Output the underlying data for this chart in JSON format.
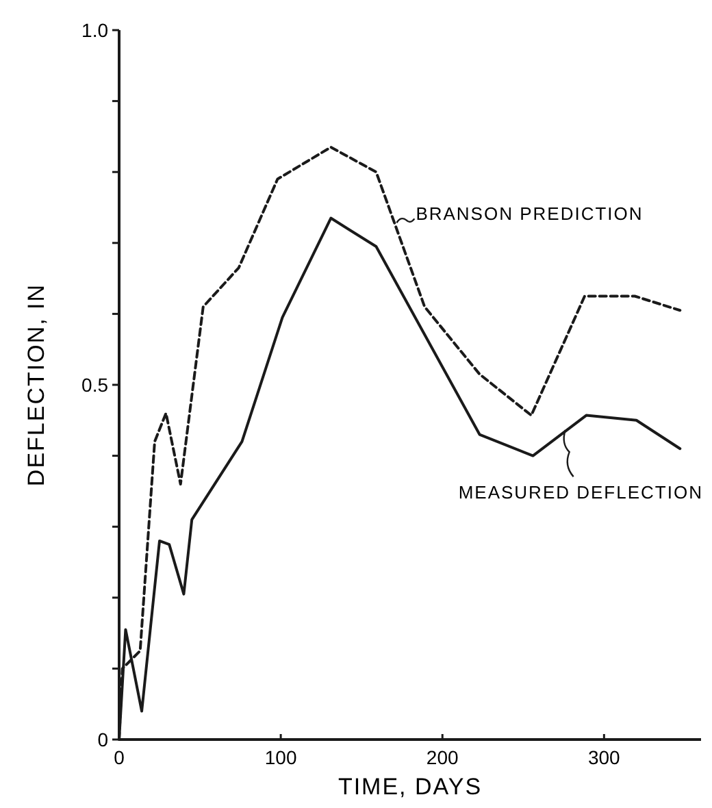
{
  "chart_data": {
    "type": "line",
    "xlabel": "TIME, DAYS",
    "ylabel": "DEFLECTION, IN",
    "xlim": [
      0,
      360
    ],
    "xticks": [
      0,
      100,
      200,
      300
    ],
    "ylim": [
      0,
      1.0
    ],
    "yticks": [
      {
        "value": 0,
        "label": "0"
      },
      {
        "value": 0.1,
        "label": null
      },
      {
        "value": 0.2,
        "label": null
      },
      {
        "value": 0.3,
        "label": null
      },
      {
        "value": 0.4,
        "label": null
      },
      {
        "value": 0.5,
        "label": "0.5"
      },
      {
        "value": 0.6,
        "label": null
      },
      {
        "value": 0.7,
        "label": null
      },
      {
        "value": 0.8,
        "label": null
      },
      {
        "value": 0.9,
        "label": null
      },
      {
        "value": 1.0,
        "label": "1.0"
      }
    ],
    "grid": false,
    "marker": "none",
    "series": [
      {
        "color": "#1a1a1a",
        "line_style": "dashed",
        "x": [
          0,
          2,
          13,
          22,
          29,
          38,
          52,
          74,
          98,
          131,
          159,
          189,
          223,
          255,
          288,
          319,
          347
        ],
        "values": [
          0,
          0.1,
          0.125,
          0.42,
          0.46,
          0.36,
          0.61,
          0.665,
          0.79,
          0.835,
          0.8,
          0.61,
          0.515,
          0.457,
          0.625,
          0.625,
          0.605
        ]
      },
      {
        "color": "#1a1a1a",
        "line_style": "solid",
        "x": [
          0,
          4,
          14,
          25,
          31,
          40,
          45,
          76,
          101,
          131,
          159,
          223,
          256,
          289,
          320,
          347
        ],
        "values": [
          0,
          0.155,
          0.04,
          0.28,
          0.275,
          0.205,
          0.31,
          0.42,
          0.595,
          0.735,
          0.695,
          0.43,
          0.4,
          0.457,
          0.45,
          0.41
        ]
      }
    ],
    "annotations": [
      {
        "text": "BRANSON PREDICTION",
        "x": 170,
        "y": 0.74
      },
      {
        "text": "MEASURED DEFLECTION",
        "x": 276,
        "y": 0.44
      }
    ]
  }
}
